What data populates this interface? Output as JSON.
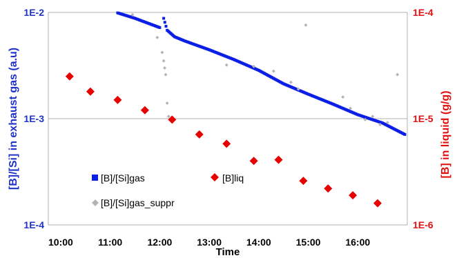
{
  "chart_data": {
    "type": "scatter",
    "title": "",
    "xlabel": "Time",
    "ylabel_left": "[B]/[Si] in exhaust gas (a.u)",
    "ylabel_right": "[B] in liquid (g/g)",
    "x_ticks": [
      "10:00",
      "11:00",
      "12:00",
      "13:00",
      "14:00",
      "15:00",
      "16:00"
    ],
    "xlim_hours": [
      9.75,
      17.0
    ],
    "y_left": {
      "scale": "log",
      "lim": [
        0.0001,
        0.01
      ],
      "ticks": [
        "1E-2",
        "1E-3",
        "1E-4"
      ]
    },
    "y_right": {
      "scale": "log",
      "lim": [
        1e-06,
        0.0001
      ],
      "ticks": [
        "1E-4",
        "1E-5",
        "1E-6"
      ]
    },
    "grid": "horizontal",
    "legend": {
      "placement": "bottom-left-inside"
    },
    "colors": {
      "gas": "#0a1ee6",
      "liq": "#e60000",
      "suppr": "#b4b4b4",
      "left_axis": "#1e32c8",
      "right_axis": "#e01010"
    },
    "series": [
      {
        "name": "[B]/[Si]gas",
        "axis": "left",
        "marker": "square",
        "segments": [
          {
            "x": [
              11.15,
              11.5,
              11.8,
              12.0
            ],
            "y": [
              0.0099,
              0.0088,
              0.0078,
              0.0072
            ]
          },
          {
            "x": [
              12.08,
              12.15,
              12.3,
              12.5,
              12.75,
              13.0,
              13.5,
              14.0,
              14.5,
              15.0,
              15.5,
              16.0,
              16.5,
              16.95
            ],
            "y": [
              0.0088,
              0.0068,
              0.0059,
              0.0054,
              0.0049,
              0.00445,
              0.0036,
              0.00285,
              0.00213,
              0.0017,
              0.00137,
              0.00109,
              0.00091,
              0.00071
            ]
          }
        ]
      },
      {
        "name": "[B]liq",
        "axis": "right",
        "marker": "diamond",
        "x": [
          10.18,
          10.6,
          11.15,
          11.7,
          12.25,
          12.8,
          13.35,
          13.9,
          14.4,
          14.9,
          15.4,
          15.9,
          16.4
        ],
        "y": [
          2.5e-05,
          1.8e-05,
          1.5e-05,
          1.2e-05,
          9.8e-06,
          7.1e-06,
          5.8e-06,
          4e-06,
          4.1e-06,
          2.6e-06,
          2.2e-06,
          1.9e-06,
          1.6e-06
        ]
      },
      {
        "name": "[B]/[Si]gas_suppr",
        "axis": "left",
        "marker": "diamond",
        "x": [
          11.45,
          11.95,
          12.05,
          12.08,
          12.1,
          12.12,
          12.15,
          12.18,
          13.35,
          13.9,
          14.3,
          14.65,
          14.8,
          14.95,
          15.7,
          15.85,
          16.15,
          16.3,
          16.45,
          16.6,
          16.8
        ],
        "y": [
          0.0095,
          0.0058,
          0.0042,
          0.0035,
          0.003,
          0.0026,
          0.0014,
          0.00105,
          0.0032,
          0.0031,
          0.0028,
          0.0022,
          0.0019,
          0.0076,
          0.0016,
          0.00125,
          0.00098,
          0.00105,
          0.00088,
          0.00092,
          0.0026
        ]
      }
    ]
  }
}
